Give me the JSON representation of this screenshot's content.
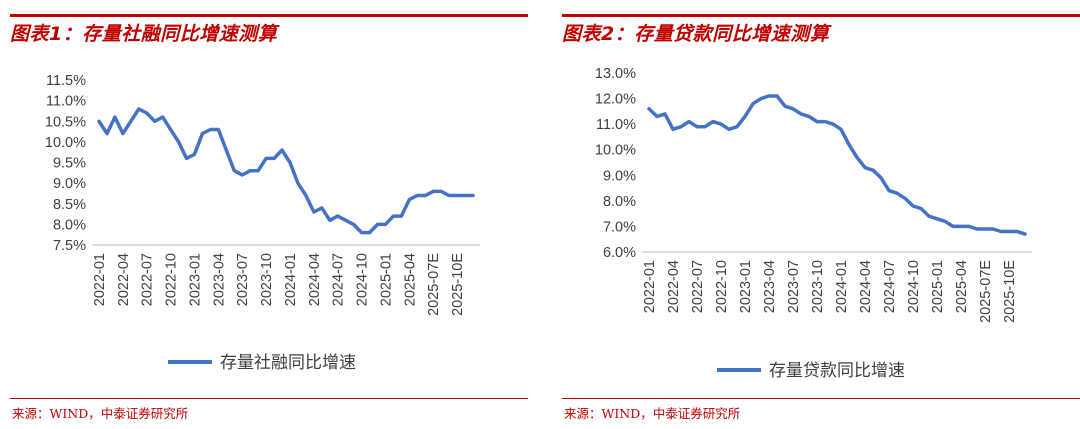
{
  "left_panel": {
    "title": "图表1：存量社融同比增速测算",
    "source": "来源：WIND，中泰证券研究所"
  },
  "right_panel": {
    "title": "图表2：存量贷款同比增速测算",
    "source": "来源：WIND，中泰证券研究所"
  },
  "chart_data": [
    {
      "type": "line",
      "title": "",
      "xlabel": "",
      "ylabel": "",
      "x_tick_labels": [
        "2022-01",
        "2022-04",
        "2022-07",
        "2022-10",
        "2023-01",
        "2023-04",
        "2023-07",
        "2023-10",
        "2024-01",
        "2024-04",
        "2024-07",
        "2024-10",
        "2025-01",
        "2025-04",
        "2025-07E",
        "2025-10E"
      ],
      "y_tick_labels": [
        "7.5%",
        "8.0%",
        "8.5%",
        "9.0%",
        "9.5%",
        "10.0%",
        "10.5%",
        "11.0%",
        "11.5%"
      ],
      "ylim": [
        7.5,
        11.5
      ],
      "grid": false,
      "legend_position": "bottom",
      "line_color": "#4472c4",
      "series": [
        {
          "name": "存量社融同比增速",
          "x": [
            "2022-01",
            "2022-02",
            "2022-03",
            "2022-04",
            "2022-05",
            "2022-06",
            "2022-07",
            "2022-08",
            "2022-09",
            "2022-10",
            "2022-11",
            "2022-12",
            "2023-01",
            "2023-02",
            "2023-03",
            "2023-04",
            "2023-05",
            "2023-06",
            "2023-07",
            "2023-08",
            "2023-09",
            "2023-10",
            "2023-11",
            "2023-12",
            "2024-01",
            "2024-02",
            "2024-03",
            "2024-04",
            "2024-05",
            "2024-06",
            "2024-07",
            "2024-08",
            "2024-09",
            "2024-10",
            "2024-11",
            "2024-12",
            "2025-01",
            "2025-02",
            "2025-03",
            "2025-04",
            "2025-05",
            "2025-06",
            "2025-07E",
            "2025-08E",
            "2025-09E",
            "2025-10E",
            "2025-11E",
            "2025-12E"
          ],
          "values": [
            10.5,
            10.2,
            10.6,
            10.2,
            10.5,
            10.8,
            10.7,
            10.5,
            10.6,
            10.3,
            10.0,
            9.6,
            9.7,
            10.2,
            10.3,
            10.3,
            9.8,
            9.3,
            9.2,
            9.3,
            9.3,
            9.6,
            9.6,
            9.8,
            9.5,
            9.0,
            8.7,
            8.3,
            8.4,
            8.1,
            8.2,
            8.1,
            8.0,
            7.8,
            7.8,
            8.0,
            8.0,
            8.2,
            8.2,
            8.6,
            8.7,
            8.7,
            8.8,
            8.8,
            8.7,
            8.7,
            8.7,
            8.7
          ]
        }
      ]
    },
    {
      "type": "line",
      "title": "",
      "xlabel": "",
      "ylabel": "",
      "x_tick_labels": [
        "2022-01",
        "2022-04",
        "2022-07",
        "2022-10",
        "2023-01",
        "2023-04",
        "2023-07",
        "2023-10",
        "2024-01",
        "2024-04",
        "2024-07",
        "2024-10",
        "2025-01",
        "2025-04",
        "2025-07E",
        "2025-10E"
      ],
      "y_tick_labels": [
        "6.0%",
        "7.0%",
        "8.0%",
        "9.0%",
        "10.0%",
        "11.0%",
        "12.0%",
        "13.0%"
      ],
      "ylim": [
        6.0,
        13.0
      ],
      "grid": false,
      "legend_position": "bottom",
      "line_color": "#4472c4",
      "series": [
        {
          "name": "存量贷款同比增速",
          "x": [
            "2022-01",
            "2022-02",
            "2022-03",
            "2022-04",
            "2022-05",
            "2022-06",
            "2022-07",
            "2022-08",
            "2022-09",
            "2022-10",
            "2022-11",
            "2022-12",
            "2023-01",
            "2023-02",
            "2023-03",
            "2023-04",
            "2023-05",
            "2023-06",
            "2023-07",
            "2023-08",
            "2023-09",
            "2023-10",
            "2023-11",
            "2023-12",
            "2024-01",
            "2024-02",
            "2024-03",
            "2024-04",
            "2024-05",
            "2024-06",
            "2024-07",
            "2024-08",
            "2024-09",
            "2024-10",
            "2024-11",
            "2024-12",
            "2025-01",
            "2025-02",
            "2025-03",
            "2025-04",
            "2025-05",
            "2025-06",
            "2025-07E",
            "2025-08E",
            "2025-09E",
            "2025-10E",
            "2025-11E",
            "2025-12E"
          ],
          "values": [
            11.6,
            11.3,
            11.4,
            10.8,
            10.9,
            11.1,
            10.9,
            10.9,
            11.1,
            11.0,
            10.8,
            10.9,
            11.3,
            11.8,
            12.0,
            12.1,
            12.1,
            11.7,
            11.6,
            11.4,
            11.3,
            11.1,
            11.1,
            11.0,
            10.8,
            10.2,
            9.7,
            9.3,
            9.2,
            8.9,
            8.4,
            8.3,
            8.1,
            7.8,
            7.7,
            7.4,
            7.3,
            7.2,
            7.0,
            7.0,
            7.0,
            6.9,
            6.9,
            6.9,
            6.8,
            6.8,
            6.8,
            6.7
          ]
        }
      ]
    }
  ]
}
